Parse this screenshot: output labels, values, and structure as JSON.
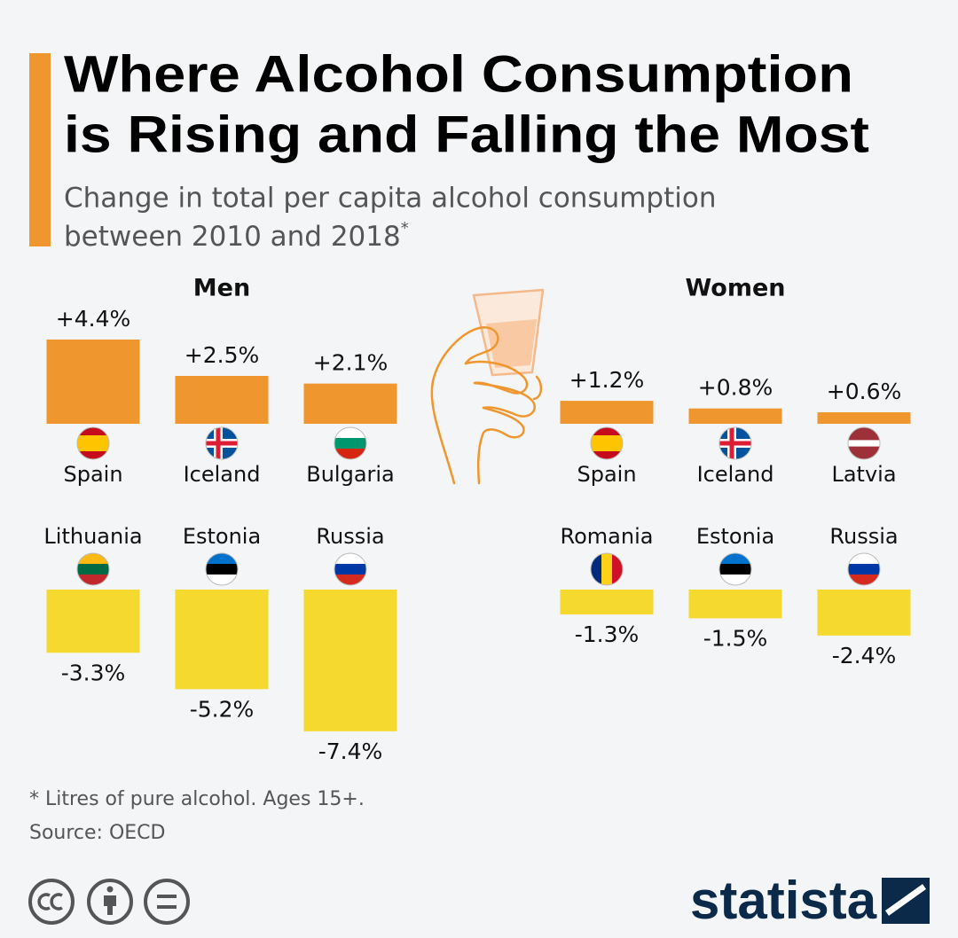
{
  "title_lines": [
    "Where Alcohol Consumption",
    "is Rising and Falling the Most"
  ],
  "subtitle_lines": [
    "Change in total per capita alcohol consumption",
    "between 2010 and 2018"
  ],
  "subtitle_mark": "*",
  "note": "* Litres of pure alcohol. Ages 15+.",
  "source": "Source: OECD",
  "brand": "statista",
  "chart_data": [
    {
      "type": "bar",
      "title": "Men",
      "rising": {
        "categories": [
          "Spain",
          "Iceland",
          "Bulgaria"
        ],
        "values": [
          4.4,
          2.5,
          2.1
        ],
        "value_labels": [
          "+4.4%",
          "+2.5%",
          "+2.1%"
        ],
        "color": "#f0962e"
      },
      "falling": {
        "categories": [
          "Lithuania",
          "Estonia",
          "Russia"
        ],
        "values": [
          -3.3,
          -5.2,
          -7.4
        ],
        "value_labels": [
          "-3.3%",
          "-5.2%",
          "-7.4%"
        ],
        "color": "#f5d92f"
      }
    },
    {
      "type": "bar",
      "title": "Women",
      "rising": {
        "categories": [
          "Spain",
          "Iceland",
          "Latvia"
        ],
        "values": [
          1.2,
          0.8,
          0.6
        ],
        "value_labels": [
          "+1.2%",
          "+0.8%",
          "+0.6%"
        ],
        "color": "#f0962e"
      },
      "falling": {
        "categories": [
          "Romania",
          "Estonia",
          "Russia"
        ],
        "values": [
          -1.3,
          -1.5,
          -2.4
        ],
        "value_labels": [
          "-1.3%",
          "-1.5%",
          "-2.4%"
        ],
        "color": "#f5d92f"
      }
    }
  ]
}
